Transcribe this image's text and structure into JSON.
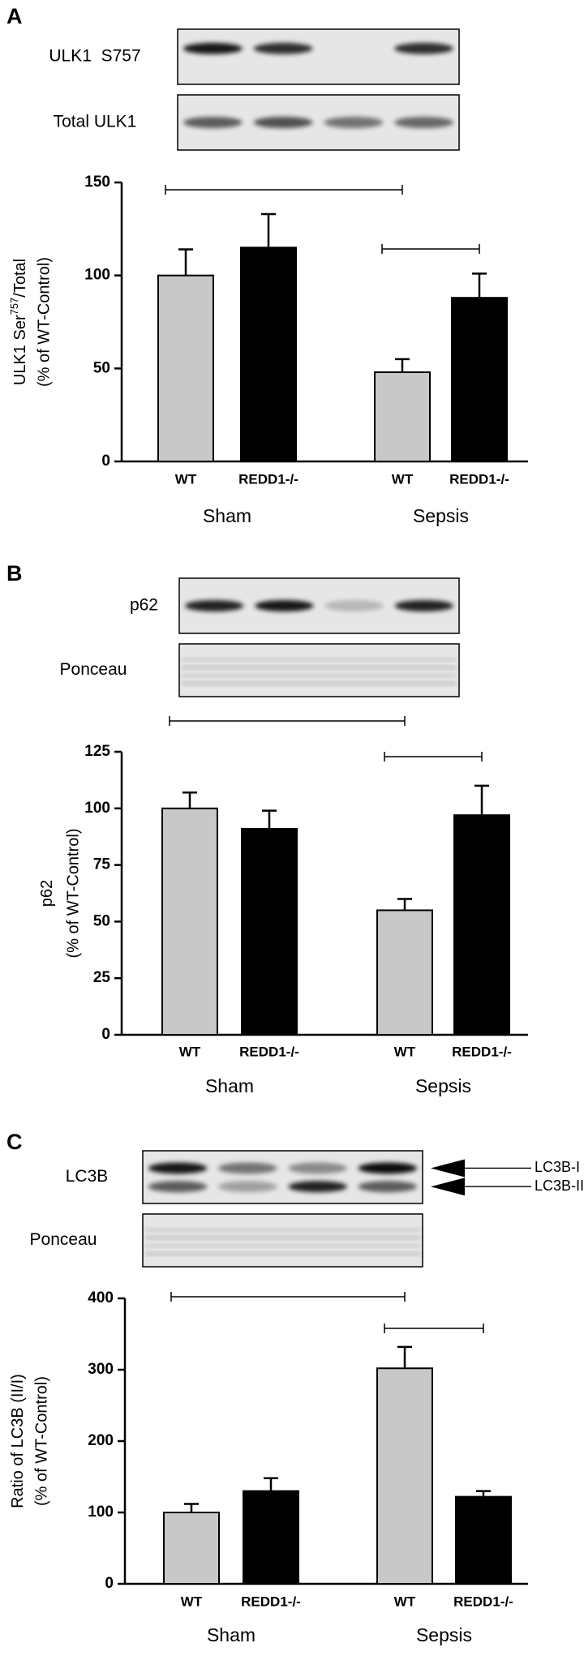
{
  "chart_data": [
    {
      "type": "bar",
      "panel": "A",
      "blot_labels": [
        "ULK1  S757",
        "Total ULK1"
      ],
      "y_label": [
        "ULK1 Ser",
        "757",
        "/Total"
      ],
      "y_label_2": "(% of WT-Control)",
      "categories": [
        "WT",
        "REDD1-/-",
        "WT",
        "REDD1-/-"
      ],
      "groups": [
        "Sham",
        "Sepsis"
      ],
      "values": [
        100,
        115,
        48,
        88
      ],
      "errors": [
        14,
        18,
        7,
        13
      ],
      "colors": [
        "#c8c8c8",
        "#000000",
        "#c8c8c8",
        "#000000"
      ],
      "ylim": [
        0,
        150
      ],
      "yticks": [
        0,
        50,
        100,
        150
      ]
    },
    {
      "type": "bar",
      "panel": "B",
      "blot_labels": [
        "p62",
        "Ponceau"
      ],
      "y_label": [
        "p62"
      ],
      "y_label_2": "(% of WT-Control)",
      "categories": [
        "WT",
        "REDD1-/-",
        "WT",
        "REDD1-/-"
      ],
      "groups": [
        "Sham",
        "Sepsis"
      ],
      "values": [
        100,
        91,
        55,
        97
      ],
      "errors": [
        7,
        8,
        5,
        13
      ],
      "colors": [
        "#c8c8c8",
        "#000000",
        "#c8c8c8",
        "#000000"
      ],
      "ylim": [
        0,
        125
      ],
      "yticks": [
        0,
        25,
        50,
        75,
        100,
        125
      ]
    },
    {
      "type": "bar",
      "panel": "C",
      "blot_labels": [
        "LC3B",
        "Ponceau"
      ],
      "arrow_labels": [
        "LC3B-I",
        "LC3B-II"
      ],
      "y_label": [
        "Ratio of LC3B (II/I)"
      ],
      "y_label_2": "(% of WT-Control)",
      "categories": [
        "WT",
        "REDD1-/-",
        "WT",
        "REDD1-/-"
      ],
      "groups": [
        "Sham",
        "Sepsis"
      ],
      "values": [
        100,
        130,
        302,
        122
      ],
      "errors": [
        12,
        18,
        30,
        8
      ],
      "colors": [
        "#c8c8c8",
        "#000000",
        "#c8c8c8",
        "#000000"
      ],
      "ylim": [
        0,
        400
      ],
      "yticks": [
        0,
        100,
        200,
        300,
        400
      ]
    }
  ]
}
